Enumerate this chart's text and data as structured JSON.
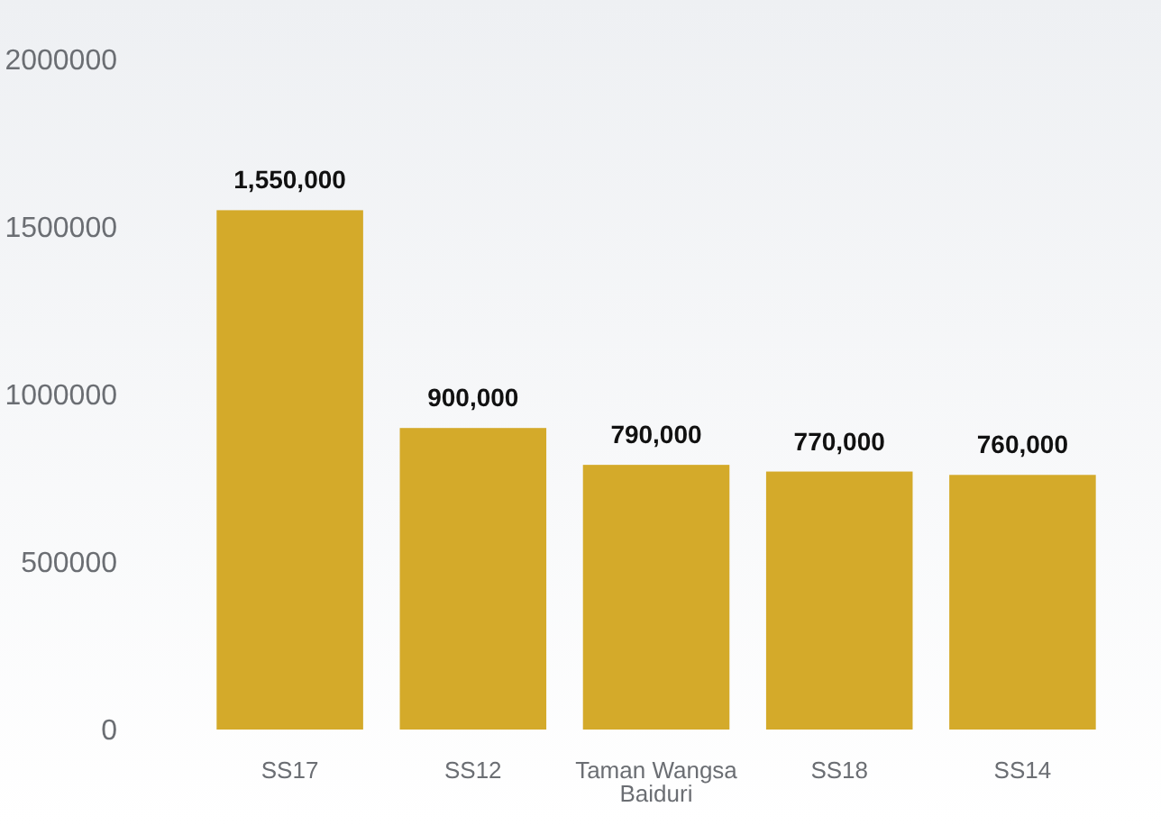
{
  "chart_data": {
    "type": "bar",
    "categories": [
      "SS17",
      "SS12",
      "Taman Wangsa Baiduri",
      "SS18",
      "SS14"
    ],
    "values": [
      1550000,
      900000,
      790000,
      770000,
      760000
    ],
    "value_labels": [
      "1,550,000",
      "900,000",
      "790,000",
      "770,000",
      "760,000"
    ],
    "color": "#d4aa2a",
    "ylim": [
      0,
      2000000
    ],
    "yticks": [
      0,
      500000,
      1000000,
      1500000,
      2000000
    ],
    "grid": false
  }
}
